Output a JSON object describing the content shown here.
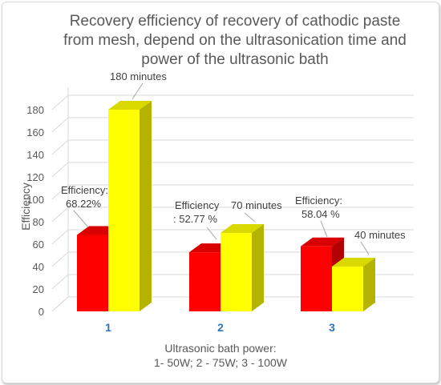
{
  "chart_data": {
    "type": "bar",
    "title_lines": [
      "Recovery  efficiency of recovery of cathodic paste",
      "from mesh, depend on the ultrasonication time and",
      "power of the ultrasonic bath"
    ],
    "categories": [
      "1",
      "2",
      "3"
    ],
    "series": [
      {
        "values": [
          68.22,
          52.77,
          58.04
        ],
        "color": "#ff0000"
      },
      {
        "values": [
          180,
          70,
          40
        ],
        "color": "#ffff00"
      }
    ],
    "ylabel": "Efficiency",
    "xlabel_lines": [
      "Ultrasonic bath power:",
      "1- 50W; 2 - 75W; 3 - 100W"
    ],
    "ylim": [
      0,
      180
    ],
    "y_ticks": [
      "0",
      "20",
      "40",
      "60",
      "80",
      "100",
      "120",
      "140",
      "160",
      "180"
    ],
    "grid": true,
    "legend": "none",
    "annotations": [
      {
        "lines": [
          "Efficiency:",
          "68.22%"
        ]
      },
      {
        "lines": [
          "180 minutes"
        ]
      },
      {
        "lines": [
          "Efficiency",
          ": 52.77 %"
        ]
      },
      {
        "lines": [
          "70 minutes"
        ]
      },
      {
        "lines": [
          "Efficiency:",
          "58.04 %"
        ]
      },
      {
        "lines": [
          "40 minutes"
        ]
      }
    ]
  }
}
